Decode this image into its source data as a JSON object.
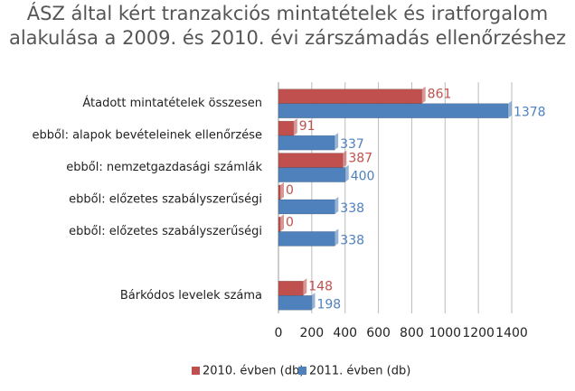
{
  "chart_data": {
    "type": "bar",
    "orientation": "horizontal",
    "title": "ÁSZ által kért tranzakciós mintatételek és iratforgalom alakulása a 2009. és 2010. évi zárszámadás ellenőrzéshez",
    "categories": [
      "Átadott mintatételek összesen",
      "ebből: alapok bevételeinek ellenőrzése",
      "ebből: nemzetgazdasági számlák",
      "ebből: előzetes szabályszerűségi",
      "ebből: előzetes szabályszerűségi",
      null,
      "Bárkódos levelek száma"
    ],
    "series": [
      {
        "name": "2010. évben (db)",
        "color": "#c0504d",
        "values": [
          861,
          91,
          387,
          0,
          0,
          null,
          148
        ]
      },
      {
        "name": "2011. évben (db)",
        "color": "#4f81bd",
        "values": [
          1378,
          337,
          400,
          338,
          338,
          null,
          198
        ]
      }
    ],
    "xlim": [
      0,
      1400
    ],
    "xticks": [
      0,
      200,
      400,
      600,
      800,
      1000,
      1200,
      1400
    ],
    "grid": true,
    "legend": "bottom"
  }
}
